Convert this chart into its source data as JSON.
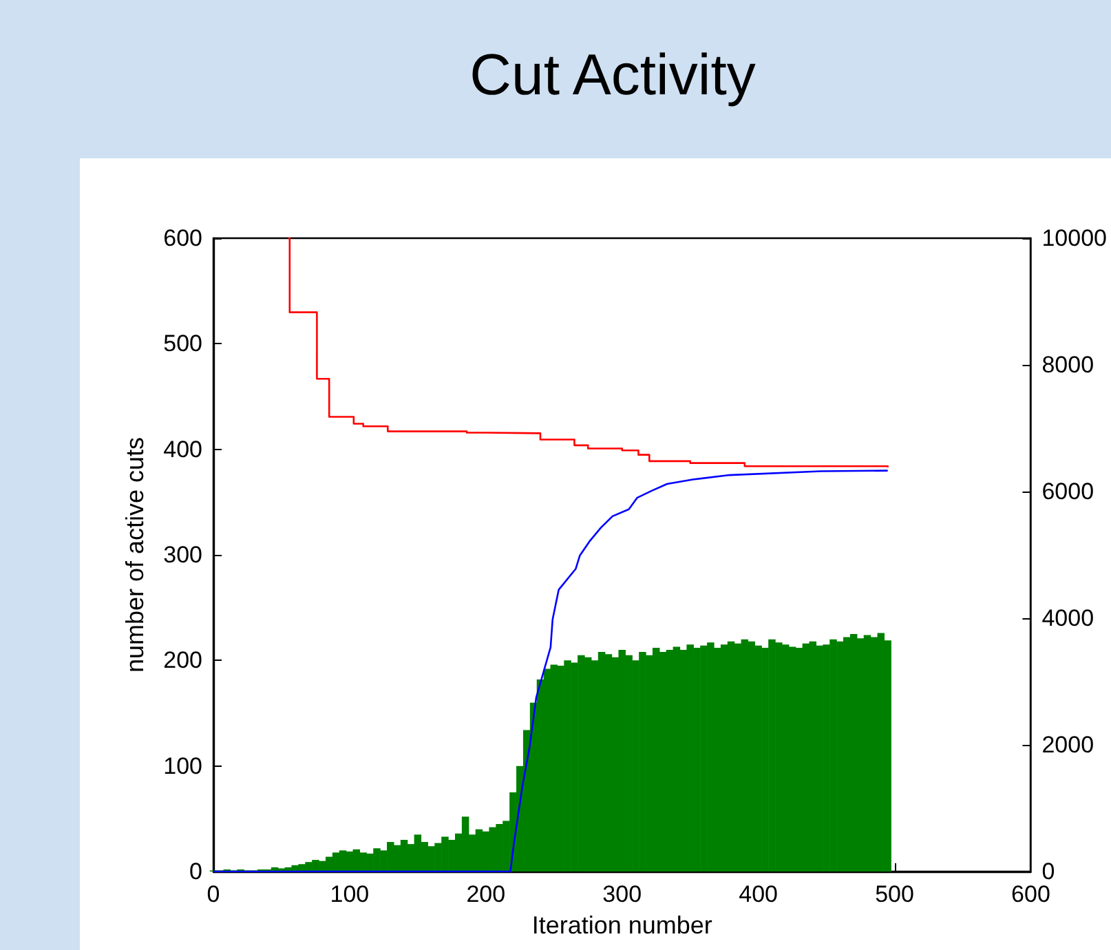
{
  "chart_data": {
    "type": "bar",
    "title": "Cut Activity",
    "xlabel": "Iteration number",
    "ylabel": "number of active cuts",
    "xlim": [
      0,
      600
    ],
    "xticks": [
      0,
      100,
      200,
      300,
      400,
      500,
      600
    ],
    "ylim": [
      0,
      600
    ],
    "yticks": [
      0,
      100,
      200,
      300,
      400,
      500,
      600
    ],
    "y2lim": [
      0,
      10000
    ],
    "y2ticks": [
      0,
      2000,
      4000,
      6000,
      8000,
      10000
    ],
    "grid": false,
    "line_style": "solid",
    "series": [
      {
        "color": "#008000",
        "x": [
          0,
          5,
          10,
          15,
          20,
          25,
          30,
          35,
          40,
          45,
          50,
          55,
          60,
          65,
          70,
          75,
          80,
          85,
          90,
          95,
          100,
          105,
          110,
          115,
          120,
          125,
          130,
          135,
          140,
          145,
          150,
          155,
          160,
          165,
          170,
          175,
          180,
          185,
          190,
          195,
          200,
          205,
          210,
          215,
          220,
          225,
          230,
          235,
          240,
          245,
          250,
          255,
          260,
          265,
          270,
          275,
          280,
          285,
          290,
          295,
          300,
          305,
          310,
          315,
          320,
          325,
          330,
          335,
          340,
          345,
          350,
          355,
          360,
          365,
          370,
          375,
          380,
          385,
          390,
          395,
          400,
          405,
          410,
          415,
          420,
          425,
          430,
          435,
          440,
          445,
          450,
          455,
          460,
          465,
          470,
          475,
          480,
          485,
          490,
          495
        ],
        "values": [
          1,
          1,
          2,
          1,
          2,
          1,
          1,
          2,
          2,
          4,
          3,
          4,
          6,
          7,
          9,
          11,
          10,
          14,
          18,
          20,
          19,
          21,
          18,
          17,
          22,
          20,
          28,
          25,
          30,
          26,
          35,
          28,
          24,
          27,
          33,
          30,
          36,
          52,
          35,
          40,
          38,
          42,
          45,
          48,
          75,
          100,
          134,
          160,
          182,
          192,
          196,
          195,
          200,
          198,
          205,
          203,
          200,
          208,
          206,
          203,
          210,
          205,
          200,
          208,
          205,
          212,
          208,
          210,
          213,
          210,
          215,
          212,
          214,
          217,
          212,
          215,
          218,
          216,
          220,
          218,
          214,
          212,
          220,
          217,
          215,
          213,
          212,
          216,
          218,
          214,
          215,
          220,
          218,
          222,
          225,
          221,
          224,
          222,
          226,
          219
        ]
      },
      {
        "type": "step",
        "axis": "y2",
        "color": "#ff0000",
        "x": [
          55,
          56,
          76,
          85,
          103,
          110,
          128,
          186,
          200,
          240,
          265,
          275,
          300,
          312,
          320,
          350,
          390,
          495
        ],
        "values": [
          10000,
          8830,
          7780,
          7180,
          7070,
          7030,
          6950,
          6930,
          6920,
          6820,
          6730,
          6680,
          6650,
          6580,
          6480,
          6450,
          6400,
          6380
        ]
      },
      {
        "type": "line",
        "axis": "y2",
        "color": "#0000ff",
        "x": [
          0,
          218,
          220.5,
          227,
          232,
          237,
          247.5,
          249,
          253.5,
          266,
          269,
          276,
          284.5,
          293,
          305,
          311,
          321.5,
          333,
          352,
          379,
          446,
          495
        ],
        "values": [
          0,
          0,
          430,
          1370,
          1950,
          2750,
          3540,
          3980,
          4450,
          4780,
          4990,
          5210,
          5430,
          5610,
          5720,
          5900,
          6010,
          6120,
          6190,
          6260,
          6320,
          6330
        ]
      }
    ]
  }
}
